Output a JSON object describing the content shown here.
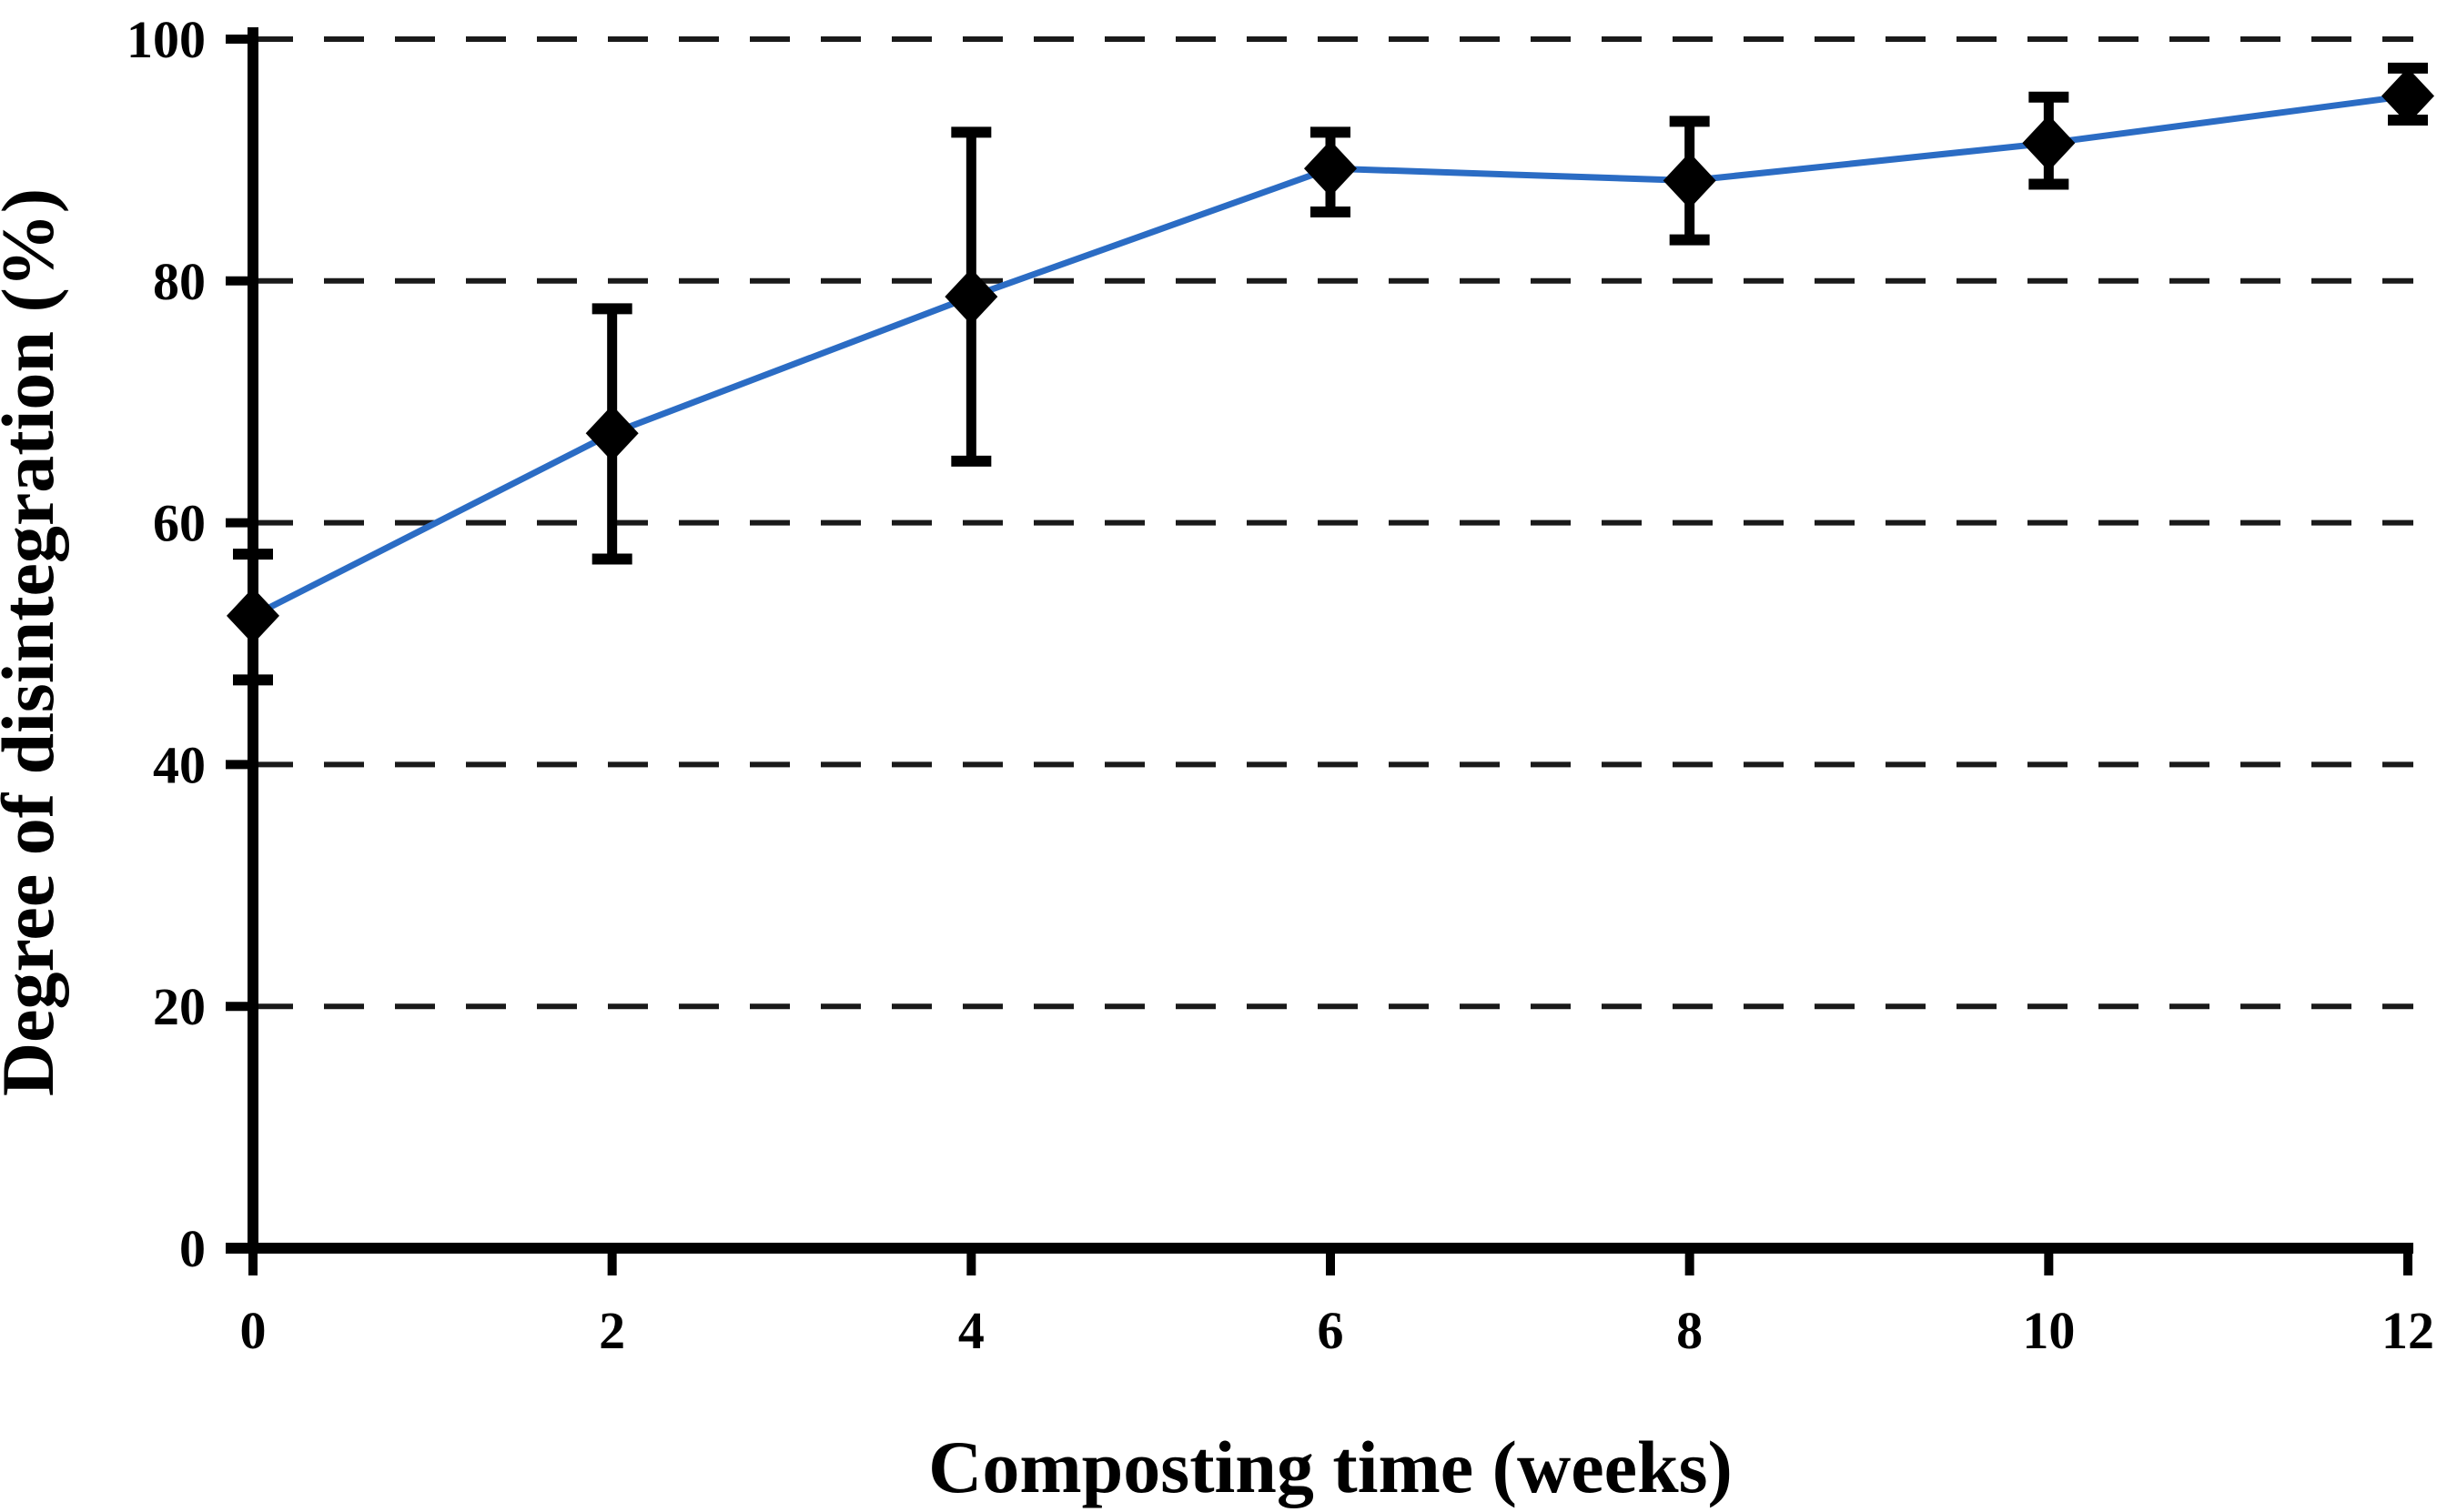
{
  "chart_data": {
    "type": "line",
    "title": "",
    "xlabel": "Composting time (weeks)",
    "ylabel": "Degree of disintegration (%)",
    "x": [
      0,
      2,
      4,
      6,
      8,
      10,
      12
    ],
    "series": [
      {
        "name": "Degree of disintegration",
        "values": [
          52.3,
          67.4,
          78.7,
          89.3,
          88.3,
          91.4,
          95.3
        ],
        "error_plus": [
          5.1,
          10.3,
          13.6,
          3.0,
          4.9,
          3.8,
          2.3
        ],
        "error_minus": [
          5.3,
          10.4,
          13.6,
          3.6,
          4.9,
          3.4,
          2.0
        ]
      }
    ],
    "xlim": [
      0,
      12
    ],
    "ylim": [
      0,
      100
    ],
    "x_ticks": [
      0,
      2,
      4,
      6,
      8,
      10,
      12
    ],
    "y_ticks": [
      0,
      20,
      40,
      60,
      80,
      100
    ],
    "grid": "horizontal-dashed",
    "legend_position": "none",
    "line_color": "#2B6CC4",
    "marker": "diamond",
    "marker_color": "#000000",
    "axis_color": "#000000",
    "gridline_color": "#1a1a1a"
  }
}
